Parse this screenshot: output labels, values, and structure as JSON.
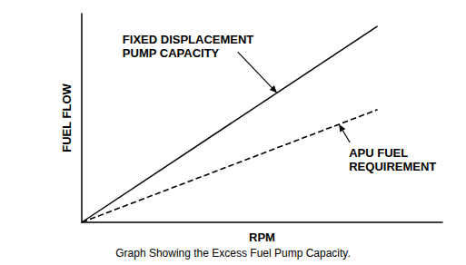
{
  "chart_data": {
    "type": "line",
    "title": "Graph Showing the Excess Fuel Pump Capacity.",
    "x_label": "RPM",
    "y_label": "FUEL FLOW",
    "x": [
      0,
      82
    ],
    "series": [
      {
        "name": "FIXED DISPLACEMENT PUMP CAPACITY",
        "color": "#000000",
        "line_style": "solid",
        "values": [
          0,
          94
        ]
      },
      {
        "name": "APU FUEL REQUIREMENT",
        "color": "#000000",
        "line_style": "dashed",
        "values": [
          0,
          54
        ]
      }
    ],
    "xlim": [
      0,
      100
    ],
    "ylim": [
      0,
      100
    ],
    "grid": false,
    "tick_labels": false
  }
}
